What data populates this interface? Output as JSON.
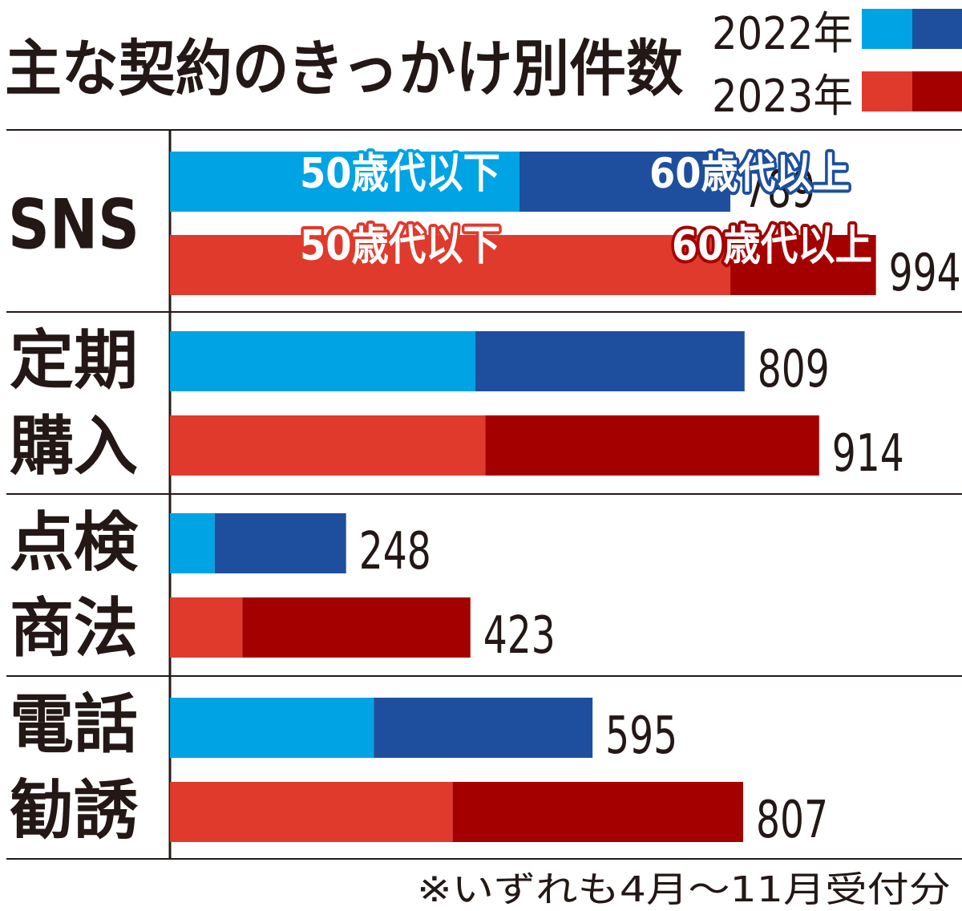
{
  "chart_data": {
    "type": "bar",
    "orientation": "horizontal",
    "stacked": true,
    "title": "主な契約のきっかけ別件数",
    "categories": [
      {
        "key": "sns",
        "lines": [
          "SNS"
        ]
      },
      {
        "key": "teiki",
        "lines": [
          "定期",
          "購入"
        ]
      },
      {
        "key": "tenken",
        "lines": [
          "点検",
          "商法"
        ]
      },
      {
        "key": "denwa",
        "lines": [
          "電話",
          "勧誘"
        ]
      }
    ],
    "years": [
      {
        "label": "2022年",
        "colors": {
          "under50": "#00a3e4",
          "over60": "#1e4f9f"
        }
      },
      {
        "label": "2023年",
        "colors": {
          "under50": "#e03a2c",
          "over60": "#a50000"
        }
      }
    ],
    "segments": [
      "50歳代以下",
      "60歳代以上"
    ],
    "series": [
      {
        "year": "2022年",
        "totals": [
          789,
          809,
          248,
          595
        ],
        "under50": [
          492,
          430,
          63,
          287
        ],
        "over60": [
          297,
          379,
          185,
          308
        ]
      },
      {
        "year": "2023年",
        "totals": [
          994,
          914,
          423,
          807
        ],
        "under50": [
          789,
          444,
          102,
          398
        ],
        "over60": [
          205,
          470,
          321,
          409
        ]
      }
    ],
    "xlim": [
      0,
      1000
    ],
    "grid": false,
    "legend": "top-right",
    "footnote": "※いずれも4月〜11月受付分",
    "text_colors": {
      "under50_2022": "#ffffff",
      "over60_2022": "#ffffff"
    }
  }
}
